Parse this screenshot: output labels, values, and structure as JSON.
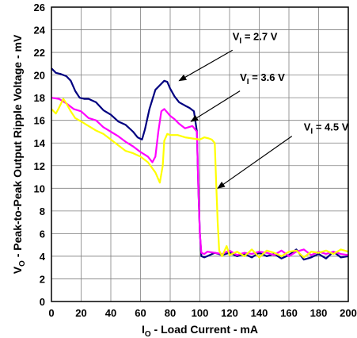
{
  "chart_data": {
    "type": "line",
    "title": "",
    "xlabel": {
      "main": "I",
      "sub": "O",
      "rest": " - Load Current - mA"
    },
    "ylabel": {
      "main": "V",
      "sub": "O",
      "rest": " - Peak-to-Peak Output Ripple Voltage - mV"
    },
    "xlim": [
      0,
      200
    ],
    "ylim": [
      0,
      26
    ],
    "xticks": [
      0,
      20,
      40,
      60,
      80,
      100,
      120,
      140,
      160,
      180,
      200
    ],
    "yticks": [
      0,
      2,
      4,
      6,
      8,
      10,
      12,
      14,
      16,
      18,
      20,
      22,
      24,
      26
    ],
    "grid": true,
    "series": [
      {
        "name": "2.7 V",
        "color": "#000080",
        "x": [
          0,
          3,
          6,
          10,
          13,
          16,
          19,
          22,
          25,
          30,
          35,
          40,
          45,
          50,
          55,
          58,
          61,
          63,
          66,
          70,
          73,
          76,
          78,
          80,
          83,
          86,
          90,
          93,
          96,
          98,
          99,
          100,
          101,
          103,
          105,
          110,
          115,
          120,
          125,
          130,
          135,
          140,
          145,
          150,
          155,
          160,
          165,
          170,
          175,
          180,
          185,
          190,
          195,
          200
        ],
        "y": [
          20.6,
          20.2,
          20.1,
          19.9,
          19.5,
          18.6,
          18.0,
          17.9,
          17.9,
          17.6,
          16.9,
          16.5,
          15.9,
          15.6,
          15.0,
          14.5,
          14.3,
          15.2,
          17.0,
          18.7,
          19.1,
          19.5,
          19.4,
          18.8,
          18.1,
          17.6,
          17.3,
          17.1,
          16.8,
          15.0,
          10.0,
          6.0,
          4.0,
          3.9,
          4.0,
          4.3,
          4.1,
          4.3,
          4.0,
          4.2,
          3.9,
          4.3,
          4.0,
          4.2,
          3.8,
          4.1,
          4.6,
          3.7,
          3.9,
          4.2,
          3.8,
          4.4,
          3.9,
          4.0
        ]
      },
      {
        "name": "3.6 V",
        "color": "#FF00FF",
        "x": [
          0,
          5,
          10,
          15,
          20,
          25,
          30,
          35,
          40,
          45,
          50,
          55,
          60,
          65,
          68,
          70,
          72,
          74,
          76,
          78,
          80,
          83,
          86,
          90,
          95,
          98,
          99,
          100,
          101,
          103,
          105,
          110,
          115,
          120,
          125,
          130,
          135,
          140,
          145,
          150,
          155,
          160,
          165,
          170,
          175,
          180,
          185,
          190,
          195,
          200
        ],
        "y": [
          18.0,
          17.9,
          17.5,
          17.0,
          16.8,
          16.2,
          16.0,
          15.4,
          15.0,
          14.6,
          14.1,
          13.7,
          13.2,
          12.8,
          12.3,
          12.8,
          15.0,
          16.8,
          17.0,
          16.7,
          16.4,
          16.1,
          15.7,
          15.3,
          15.5,
          15.0,
          10.0,
          6.0,
          4.3,
          4.2,
          4.4,
          4.3,
          4.2,
          4.5,
          4.1,
          4.3,
          4.2,
          4.4,
          4.3,
          4.1,
          4.5,
          4.0,
          4.4,
          4.6,
          4.1,
          4.4,
          4.2,
          4.4,
          4.2,
          4.1
        ]
      },
      {
        "name": "4.5 V",
        "color": "#FFFF00",
        "x": [
          0,
          3,
          5,
          8,
          10,
          13,
          16,
          20,
          25,
          30,
          35,
          40,
          45,
          50,
          55,
          60,
          65,
          70,
          73,
          75,
          76,
          78,
          80,
          85,
          90,
          95,
          100,
          103,
          106,
          108,
          110,
          111,
          112,
          113,
          115,
          118,
          120,
          125,
          130,
          135,
          140,
          145,
          150,
          155,
          160,
          165,
          170,
          175,
          180,
          185,
          190,
          195,
          200
        ],
        "y": [
          17.0,
          16.6,
          17.1,
          17.9,
          17.5,
          16.8,
          16.2,
          15.9,
          15.5,
          15.1,
          14.8,
          14.3,
          13.8,
          13.3,
          13.1,
          12.8,
          12.3,
          11.4,
          10.5,
          12.0,
          14.2,
          14.8,
          14.7,
          14.7,
          14.5,
          14.4,
          14.3,
          14.5,
          14.4,
          14.3,
          14.0,
          10.5,
          7.0,
          4.5,
          4.0,
          4.9,
          4.1,
          4.4,
          4.0,
          4.6,
          3.9,
          4.5,
          4.3,
          4.0,
          4.4,
          4.5,
          3.9,
          4.4,
          4.3,
          4.5,
          4.2,
          4.6,
          4.4
        ]
      }
    ],
    "annotations": [
      {
        "label_main": "V",
        "label_sub": "I",
        "label_rest": " = 2.7 V",
        "text_x": 122,
        "text_y": 23.1,
        "arrow_from": [
          122,
          22.2
        ],
        "arrow_to": [
          86,
          19.5
        ]
      },
      {
        "label_main": "V",
        "label_sub": "I",
        "label_rest": " = 3.6 V",
        "text_x": 127,
        "text_y": 19.5,
        "arrow_from": [
          127,
          18.6
        ],
        "arrow_to": [
          94,
          15.9
        ]
      },
      {
        "label_main": "V",
        "label_sub": "I",
        "label_rest": " = 4.5 V",
        "text_x": 170,
        "text_y": 15.1,
        "arrow_from": [
          162,
          14.6
        ],
        "arrow_to": [
          112,
          10.0
        ]
      }
    ]
  }
}
